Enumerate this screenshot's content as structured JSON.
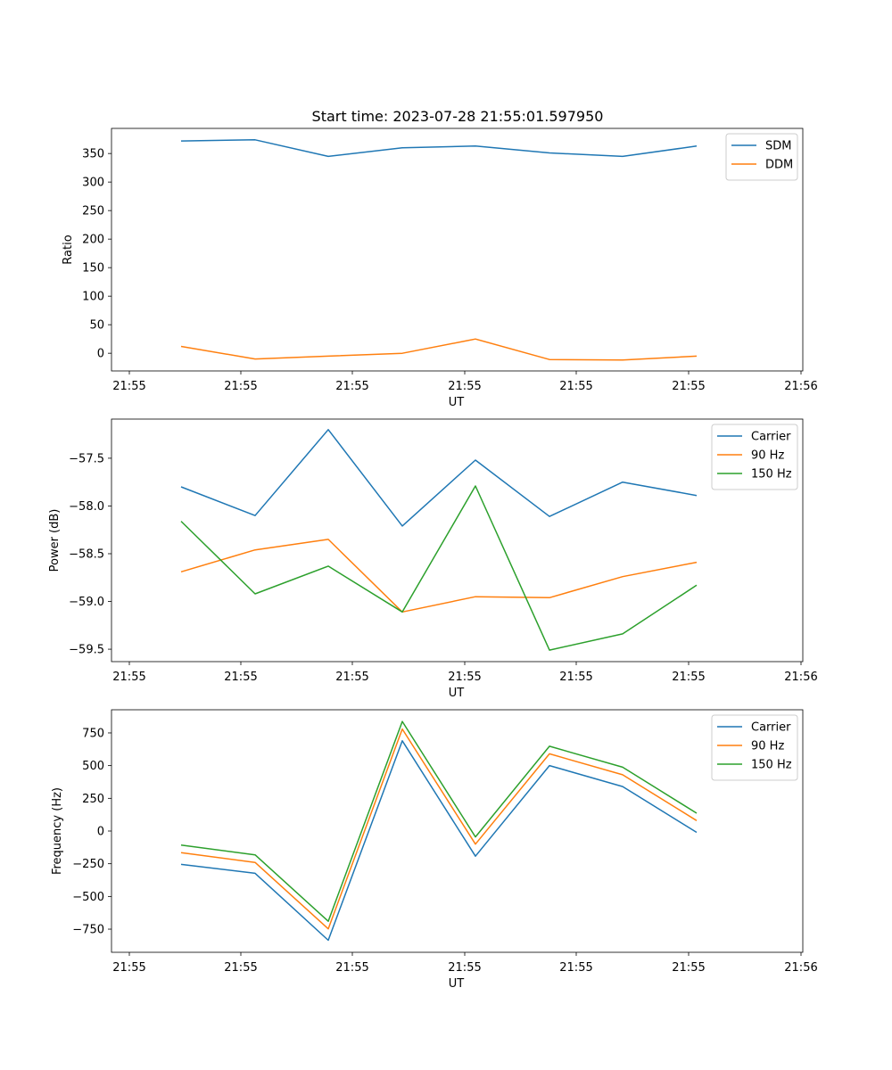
{
  "chart_data": [
    {
      "type": "line",
      "title": "Start time: 2023-07-28 21:55:01.597950",
      "xlabel": "UT",
      "ylabel": "Ratio",
      "x_tick_labels": [
        "21:55",
        "21:55",
        "21:55",
        "21:55",
        "21:55",
        "21:55",
        "21:55",
        "21:56"
      ],
      "y_ticks": [
        0,
        50,
        100,
        150,
        200,
        250,
        300,
        350
      ],
      "y_tick_labels": [
        "0",
        "50",
        "100",
        "150",
        "200",
        "250",
        "300",
        "350"
      ],
      "ylim": [
        -31,
        394
      ],
      "legend_position": "top-right",
      "grid": false,
      "series": [
        {
          "name": "SDM",
          "color": "#1f77b4",
          "values": [
            372,
            374,
            345,
            360,
            363,
            351,
            345,
            363
          ]
        },
        {
          "name": "DDM",
          "color": "#ff7f0e",
          "values": [
            12,
            -10,
            -5,
            0,
            25,
            -11,
            -12,
            -5
          ]
        }
      ]
    },
    {
      "type": "line",
      "title": "",
      "xlabel": "UT",
      "ylabel": "Power (dB)",
      "x_tick_labels": [
        "21:55",
        "21:55",
        "21:55",
        "21:55",
        "21:55",
        "21:55",
        "21:55",
        "21:56"
      ],
      "y_ticks": [
        -59.5,
        -59.0,
        -58.5,
        -58.0,
        -57.5
      ],
      "y_tick_labels": [
        "−59.5",
        "−59.0",
        "−58.5",
        "−58.0",
        "−57.5"
      ],
      "ylim": [
        -59.63,
        -57.09
      ],
      "legend_position": "top-right",
      "grid": false,
      "series": [
        {
          "name": "Carrier",
          "color": "#1f77b4",
          "values": [
            -57.8,
            -58.1,
            -57.2,
            -58.21,
            -57.52,
            -58.11,
            -57.75,
            -57.89
          ]
        },
        {
          "name": "90 Hz",
          "color": "#ff7f0e",
          "values": [
            -58.69,
            -58.46,
            -58.35,
            -59.11,
            -58.95,
            -58.96,
            -58.74,
            -58.59
          ]
        },
        {
          "name": "150 Hz",
          "color": "#2ca02c",
          "values": [
            -58.16,
            -58.92,
            -58.63,
            -59.11,
            -57.79,
            -59.51,
            -59.34,
            -58.83
          ]
        }
      ]
    },
    {
      "type": "line",
      "title": "",
      "xlabel": "UT",
      "ylabel": "Frequency (Hz)",
      "x_tick_labels": [
        "21:55",
        "21:55",
        "21:55",
        "21:55",
        "21:55",
        "21:55",
        "21:55",
        "21:56"
      ],
      "y_ticks": [
        -750,
        -500,
        -250,
        0,
        250,
        500,
        750
      ],
      "y_tick_labels": [
        "−750",
        "−500",
        "−250",
        "0",
        "250",
        "500",
        "750"
      ],
      "ylim": [
        -927,
        927
      ],
      "legend_position": "top-right",
      "grid": false,
      "series": [
        {
          "name": "Carrier",
          "color": "#1f77b4",
          "values": [
            -255,
            -323,
            -835,
            690,
            -192,
            500,
            340,
            -10
          ]
        },
        {
          "name": "90 Hz",
          "color": "#ff7f0e",
          "values": [
            -165,
            -240,
            -748,
            780,
            -100,
            590,
            430,
            80
          ]
        },
        {
          "name": "150 Hz",
          "color": "#2ca02c",
          "values": [
            -107,
            -182,
            -690,
            838,
            -45,
            648,
            488,
            136
          ]
        }
      ]
    }
  ]
}
